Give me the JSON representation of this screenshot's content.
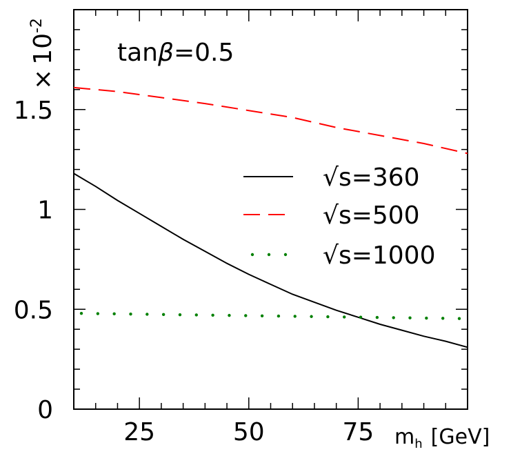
{
  "chart_data": {
    "type": "line",
    "title": "",
    "annotation": {
      "prefix": "tan",
      "symbol": "β",
      "suffix": "=0.5"
    },
    "ymultiplier": {
      "times": "×",
      "base": "10",
      "exponent": "-2"
    },
    "xlabel": {
      "main": "m",
      "sub": "h",
      "unit": "[GeV]"
    },
    "ylabel": "",
    "xlim": [
      10,
      100
    ],
    "ylim": [
      0,
      2.0
    ],
    "xticks": [
      25,
      50,
      75
    ],
    "yticks": [
      0,
      0.5,
      1,
      1.5
    ],
    "ytick_labels": [
      "0",
      "0.5",
      "1",
      "1.5"
    ],
    "grid": false,
    "legend": {
      "position": "center-right"
    },
    "series": [
      {
        "name": "√s=360",
        "style": "solid",
        "color": "#000000",
        "x": [
          10,
          15,
          20,
          25,
          30,
          35,
          40,
          45,
          50,
          55,
          60,
          65,
          70,
          75,
          80,
          85,
          90,
          95,
          100
        ],
        "y": [
          1.18,
          1.115,
          1.045,
          0.98,
          0.915,
          0.85,
          0.79,
          0.73,
          0.675,
          0.625,
          0.575,
          0.535,
          0.495,
          0.46,
          0.425,
          0.395,
          0.365,
          0.34,
          0.31
        ]
      },
      {
        "name": "√s=500",
        "style": "dashed",
        "color": "#ff0000",
        "x": [
          10,
          20,
          30,
          40,
          50,
          60,
          70,
          80,
          90,
          100
        ],
        "y": [
          1.61,
          1.59,
          1.56,
          1.53,
          1.495,
          1.46,
          1.41,
          1.37,
          1.33,
          1.28
        ]
      },
      {
        "name": "√s=1000",
        "style": "dotted",
        "color": "#008000",
        "x": [
          10,
          20,
          30,
          40,
          50,
          60,
          70,
          80,
          90,
          100
        ],
        "y": [
          0.48,
          0.477,
          0.474,
          0.471,
          0.468,
          0.465,
          0.462,
          0.459,
          0.456,
          0.453
        ]
      }
    ]
  }
}
